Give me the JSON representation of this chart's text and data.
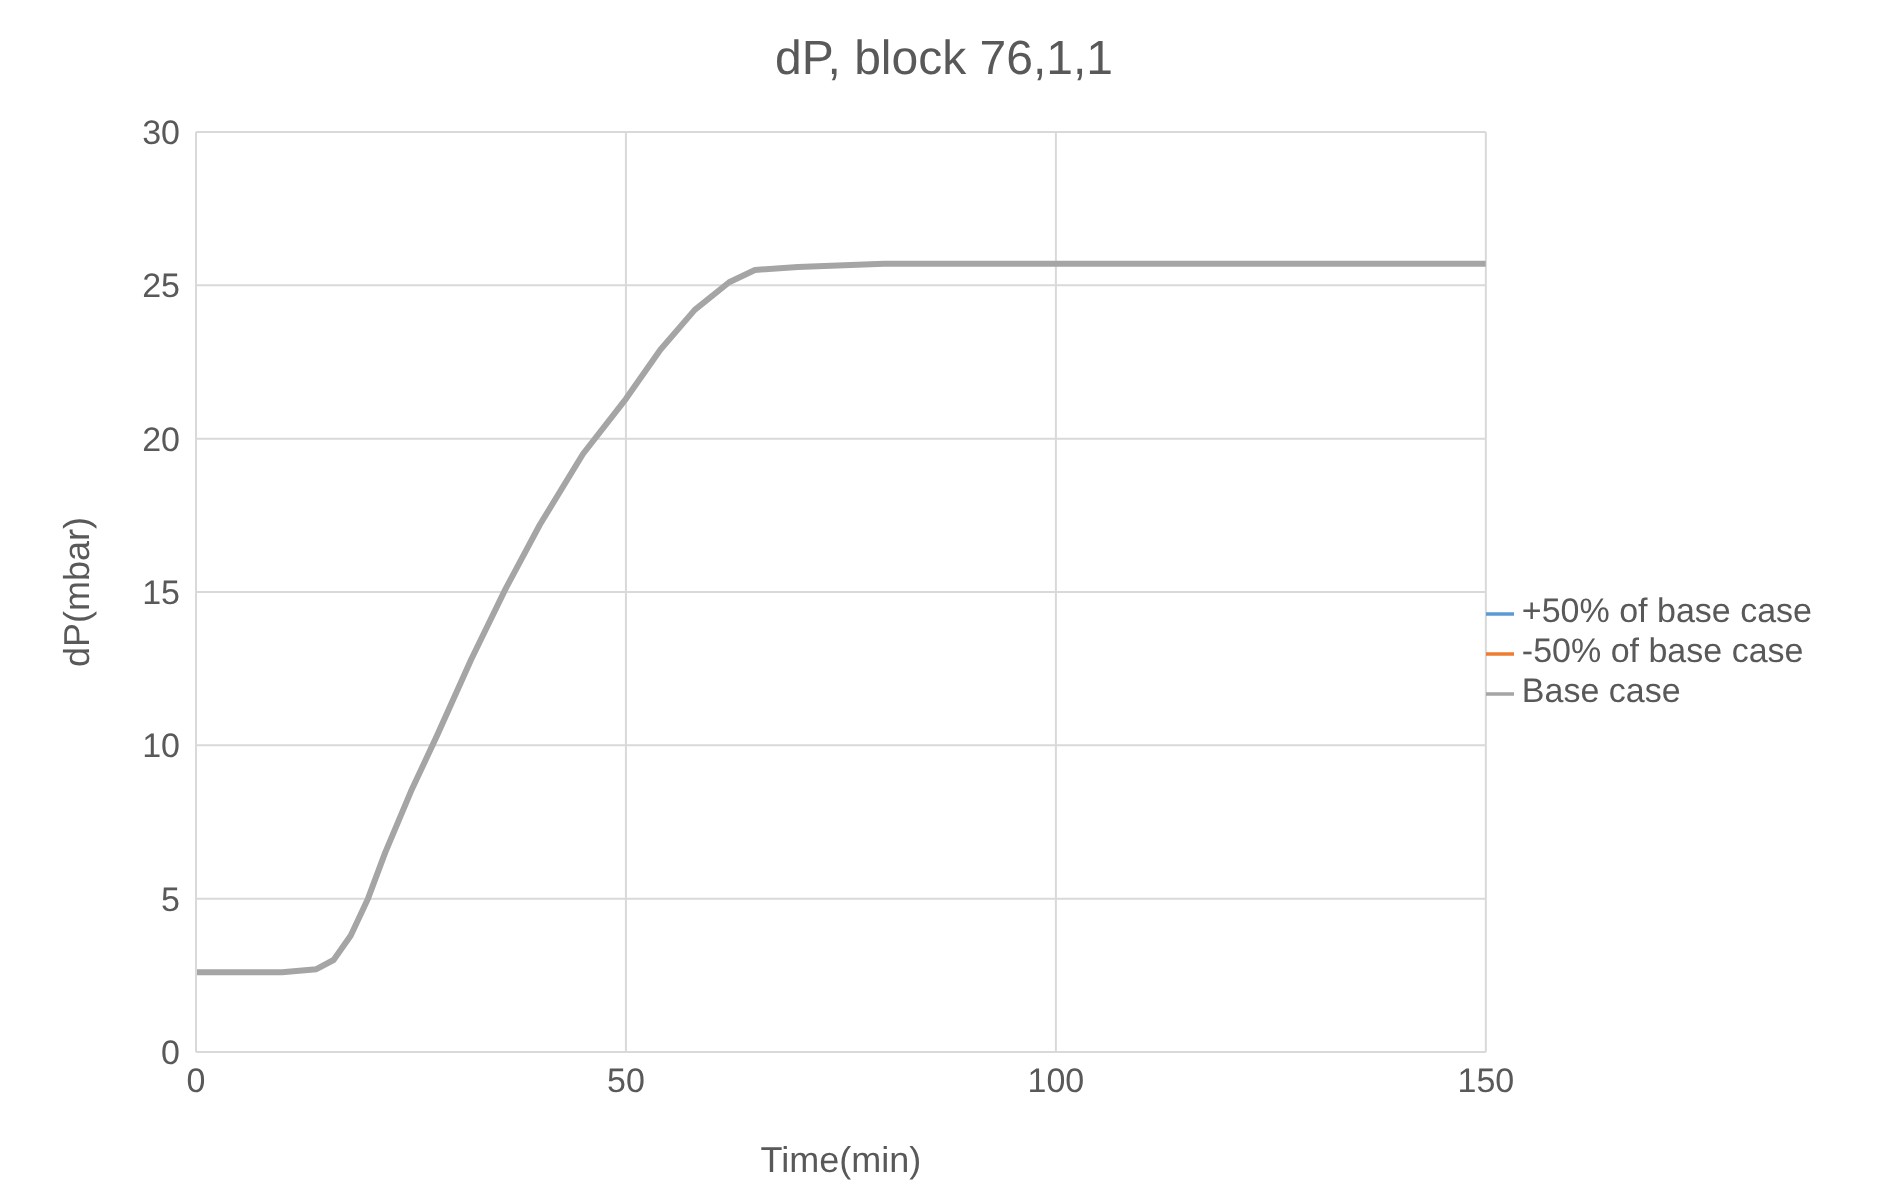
{
  "chart_data": {
    "type": "line",
    "title": "dP, block 76,1,1",
    "xlabel": "Time(min)",
    "ylabel": "dP(mbar)",
    "x": [
      0,
      5,
      10,
      14,
      16,
      18,
      20,
      22,
      25,
      28,
      32,
      36,
      40,
      45,
      50,
      54,
      58,
      62,
      65,
      70,
      80,
      100,
      120,
      150
    ],
    "series": [
      {
        "name": "+50% of base case",
        "color": "#5b9bd5",
        "values": [
          null,
          null,
          null,
          null,
          null,
          null,
          null,
          null,
          null,
          null,
          null,
          null,
          null,
          null,
          null,
          null,
          null,
          null,
          null,
          null,
          null,
          null,
          null,
          null
        ]
      },
      {
        "name": "-50% of base case",
        "color": "#ed7d31",
        "values": [
          null,
          null,
          null,
          null,
          null,
          null,
          null,
          null,
          null,
          null,
          null,
          null,
          null,
          null,
          null,
          null,
          null,
          null,
          null,
          null,
          null,
          null,
          null,
          null
        ]
      },
      {
        "name": "Base case",
        "color": "#a5a5a5",
        "values": [
          2.6,
          2.6,
          2.6,
          2.7,
          3.0,
          3.8,
          5.0,
          6.5,
          8.5,
          10.3,
          12.8,
          15.1,
          17.2,
          19.5,
          21.3,
          22.9,
          24.2,
          25.1,
          25.5,
          25.6,
          25.7,
          25.7,
          25.7,
          25.7
        ]
      }
    ],
    "xlim": [
      0,
      150
    ],
    "xticks": [
      0,
      50,
      100,
      150
    ],
    "ylim": [
      0,
      30
    ],
    "yticks": [
      0,
      5,
      10,
      15,
      20,
      25,
      30
    ],
    "grid": true,
    "legend": "right",
    "marker": "none",
    "line_style": "solid"
  }
}
